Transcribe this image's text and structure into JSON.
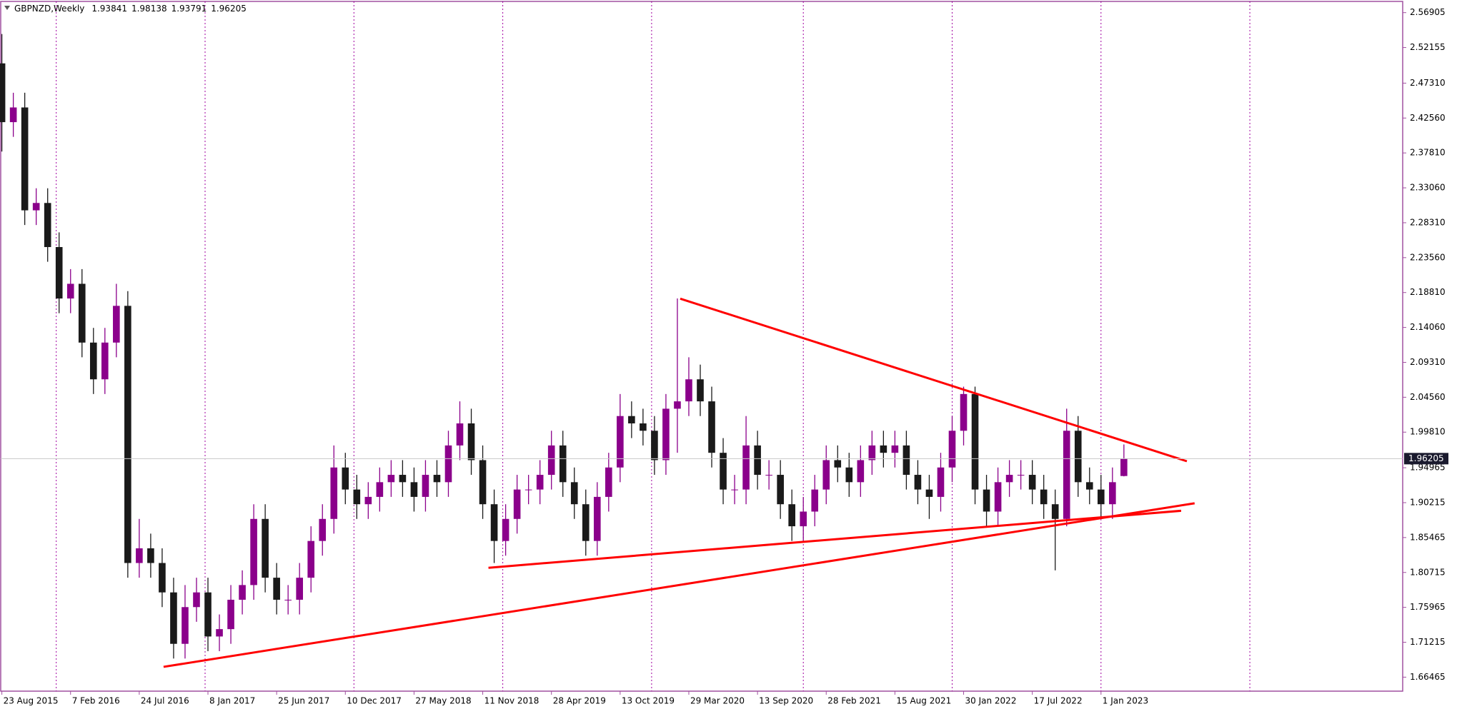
{
  "chart_data": {
    "type": "candlestick",
    "title": "GBPNZD,Weekly",
    "ohlc": [
      1.93841,
      1.98138,
      1.93791,
      1.96205
    ],
    "up_color": "#8b008b",
    "down_color": "#1a1a1a",
    "separator_color": "#a000a0",
    "trendline_color": "#ff0000",
    "last_price": 1.96205,
    "xlim": [
      -0.4,
      489.4
    ],
    "ylim": [
      1.6456,
      2.5843
    ],
    "xticks": [
      {
        "value": 0,
        "label": "23 Aug 2015"
      },
      {
        "value": 24,
        "label": "7 Feb 2016"
      },
      {
        "value": 48,
        "label": "24 Jul 2016"
      },
      {
        "value": 72,
        "label": "8 Jan 2017"
      },
      {
        "value": 96,
        "label": "25 Jun 2017"
      },
      {
        "value": 120,
        "label": "10 Dec 2017"
      },
      {
        "value": 144,
        "label": "27 May 2018"
      },
      {
        "value": 168,
        "label": "11 Nov 2018"
      },
      {
        "value": 192,
        "label": "28 Apr 2019"
      },
      {
        "value": 216,
        "label": "13 Oct 2019"
      },
      {
        "value": 240,
        "label": "29 Mar 2020"
      },
      {
        "value": 264,
        "label": "13 Sep 2020"
      },
      {
        "value": 288,
        "label": "28 Feb 2021"
      },
      {
        "value": 312,
        "label": "15 Aug 2021"
      },
      {
        "value": 336,
        "label": "30 Jan 2022"
      },
      {
        "value": 360,
        "label": "17 Jul 2022"
      },
      {
        "value": 384,
        "label": "1 Jan 2023"
      }
    ],
    "separators": [
      19,
      71,
      123,
      175,
      227,
      280,
      332,
      384,
      436
    ],
    "yticks": [
      2.56905,
      2.52155,
      {
        "value": 2.4731,
        "label": "2.47310"
      },
      {
        "value": 2.4256,
        "label": "2.42560"
      },
      {
        "value": 2.3781,
        "label": "2.37810"
      },
      {
        "value": 2.3306,
        "label": "2.33060"
      },
      {
        "value": 2.2831,
        "label": "2.28310"
      },
      {
        "value": 2.2356,
        "label": "2.23560"
      },
      {
        "value": 2.1881,
        "label": "2.18810"
      },
      {
        "value": 2.1406,
        "label": "2.14060"
      },
      {
        "value": 2.0931,
        "label": "2.09310"
      },
      {
        "value": 2.0456,
        "label": "2.04560"
      },
      {
        "value": 1.9981,
        "label": "1.99810"
      },
      1.94965,
      1.90215,
      1.85465,
      1.80715,
      1.75965,
      1.71215,
      1.66465
    ],
    "x": [
      0,
      4,
      8,
      12,
      16,
      20,
      24,
      28,
      32,
      36,
      40,
      44,
      48,
      52,
      56,
      60,
      64,
      68,
      72,
      76,
      80,
      84,
      88,
      92,
      96,
      100,
      104,
      108,
      112,
      116,
      120,
      124,
      128,
      132,
      136,
      140,
      144,
      148,
      152,
      156,
      160,
      164,
      168,
      172,
      176,
      180,
      184,
      188,
      192,
      196,
      200,
      204,
      208,
      212,
      216,
      220,
      224,
      228,
      232,
      236,
      240,
      244,
      248,
      252,
      256,
      260,
      264,
      268,
      272,
      276,
      280,
      284,
      288,
      292,
      296,
      300,
      304,
      308,
      312,
      316,
      320,
      324,
      328,
      332,
      336,
      340,
      344,
      348,
      352,
      356,
      360,
      364,
      368,
      372,
      376,
      380,
      384,
      388,
      392
    ],
    "open": [
      2.5,
      2.42,
      2.44,
      2.3,
      2.31,
      2.25,
      2.18,
      2.2,
      2.12,
      2.07,
      2.12,
      2.17,
      1.82,
      1.84,
      1.82,
      1.78,
      1.71,
      1.76,
      1.78,
      1.72,
      1.73,
      1.77,
      1.79,
      1.88,
      1.8,
      1.77,
      1.77,
      1.8,
      1.85,
      1.88,
      1.95,
      1.92,
      1.9,
      1.91,
      1.93,
      1.94,
      1.93,
      1.91,
      1.94,
      1.93,
      1.98,
      2.01,
      1.96,
      1.9,
      1.85,
      1.88,
      1.92,
      1.92,
      1.94,
      1.98,
      1.93,
      1.9,
      1.85,
      1.91,
      1.95,
      2.02,
      2.01,
      2.0,
      1.96,
      2.03,
      2.04,
      2.07,
      2.04,
      1.97,
      1.92,
      1.92,
      1.98,
      1.94,
      1.94,
      1.9,
      1.87,
      1.89,
      1.92,
      1.96,
      1.95,
      1.93,
      1.96,
      1.98,
      1.97,
      1.98,
      1.94,
      1.92,
      1.91,
      1.95,
      2.0,
      2.05,
      1.92,
      1.89,
      1.93,
      1.94,
      1.94,
      1.92,
      1.9,
      1.88,
      2.0,
      1.93,
      1.92,
      1.9,
      1.93841
    ],
    "high": [
      2.54,
      2.46,
      2.46,
      2.33,
      2.33,
      2.27,
      2.22,
      2.22,
      2.14,
      2.14,
      2.2,
      2.19,
      1.88,
      1.86,
      1.84,
      1.8,
      1.79,
      1.8,
      1.8,
      1.75,
      1.79,
      1.81,
      1.9,
      1.9,
      1.82,
      1.79,
      1.82,
      1.87,
      1.9,
      1.98,
      1.97,
      1.94,
      1.93,
      1.95,
      1.96,
      1.96,
      1.95,
      1.96,
      1.96,
      2.0,
      2.04,
      2.03,
      1.98,
      1.92,
      1.9,
      1.94,
      1.94,
      1.96,
      2.0,
      2.0,
      1.95,
      1.92,
      1.93,
      1.97,
      2.05,
      2.04,
      2.03,
      2.02,
      2.05,
      2.18,
      2.1,
      2.09,
      2.06,
      1.99,
      1.94,
      2.02,
      2.0,
      1.96,
      1.96,
      1.92,
      1.91,
      1.94,
      1.98,
      1.98,
      1.97,
      1.98,
      2.0,
      2.0,
      2.0,
      2.0,
      1.96,
      1.94,
      1.97,
      2.02,
      2.06,
      2.06,
      1.94,
      1.95,
      1.96,
      1.96,
      1.96,
      1.94,
      1.92,
      2.03,
      2.02,
      1.95,
      1.94,
      1.95,
      1.98138
    ],
    "low": [
      2.38,
      2.4,
      2.28,
      2.28,
      2.23,
      2.16,
      2.16,
      2.1,
      2.05,
      2.05,
      2.1,
      1.8,
      1.8,
      1.8,
      1.76,
      1.69,
      1.69,
      1.74,
      1.7,
      1.7,
      1.71,
      1.75,
      1.77,
      1.78,
      1.75,
      1.75,
      1.75,
      1.78,
      1.83,
      1.86,
      1.9,
      1.88,
      1.88,
      1.89,
      1.91,
      1.91,
      1.89,
      1.89,
      1.91,
      1.91,
      1.96,
      1.94,
      1.88,
      1.82,
      1.83,
      1.86,
      1.9,
      1.9,
      1.92,
      1.91,
      1.88,
      1.83,
      1.83,
      1.89,
      1.93,
      1.99,
      1.98,
      1.94,
      1.94,
      1.97,
      2.02,
      2.02,
      1.95,
      1.9,
      1.9,
      1.9,
      1.92,
      1.92,
      1.88,
      1.85,
      1.85,
      1.87,
      1.9,
      1.93,
      1.91,
      1.91,
      1.94,
      1.95,
      1.95,
      1.92,
      1.9,
      1.88,
      1.89,
      1.93,
      1.98,
      1.9,
      1.87,
      1.87,
      1.91,
      1.92,
      1.9,
      1.88,
      1.81,
      1.87,
      1.91,
      1.9,
      1.88,
      1.88,
      1.93791
    ],
    "close": [
      2.42,
      2.44,
      2.3,
      2.31,
      2.25,
      2.18,
      2.2,
      2.12,
      2.07,
      2.12,
      2.17,
      1.82,
      1.84,
      1.82,
      1.78,
      1.71,
      1.76,
      1.78,
      1.72,
      1.73,
      1.77,
      1.79,
      1.88,
      1.8,
      1.77,
      1.77,
      1.8,
      1.85,
      1.88,
      1.95,
      1.92,
      1.9,
      1.91,
      1.93,
      1.94,
      1.93,
      1.91,
      1.94,
      1.93,
      1.98,
      2.01,
      1.96,
      1.9,
      1.85,
      1.88,
      1.92,
      1.92,
      1.94,
      1.98,
      1.93,
      1.9,
      1.85,
      1.91,
      1.95,
      2.02,
      2.01,
      2.0,
      1.96,
      2.03,
      2.04,
      2.07,
      2.04,
      1.97,
      1.92,
      1.92,
      1.98,
      1.94,
      1.94,
      1.9,
      1.87,
      1.89,
      1.92,
      1.96,
      1.95,
      1.93,
      1.96,
      1.98,
      1.97,
      1.98,
      1.94,
      1.92,
      1.91,
      1.95,
      2.0,
      2.05,
      1.92,
      1.89,
      1.93,
      1.94,
      1.94,
      1.92,
      1.9,
      1.88,
      2.0,
      1.93,
      1.92,
      1.9,
      1.93,
      1.96205
    ],
    "trendlines": [
      {
        "x": [
          237,
          414
        ],
        "values": [
          2.1798,
          1.9585
        ]
      },
      {
        "x": [
          56.5,
          416.7
        ],
        "values": [
          1.6787,
          1.9013
        ]
      },
      {
        "x": [
          170,
          412
        ],
        "values": [
          1.8135,
          1.8911
        ]
      }
    ]
  }
}
